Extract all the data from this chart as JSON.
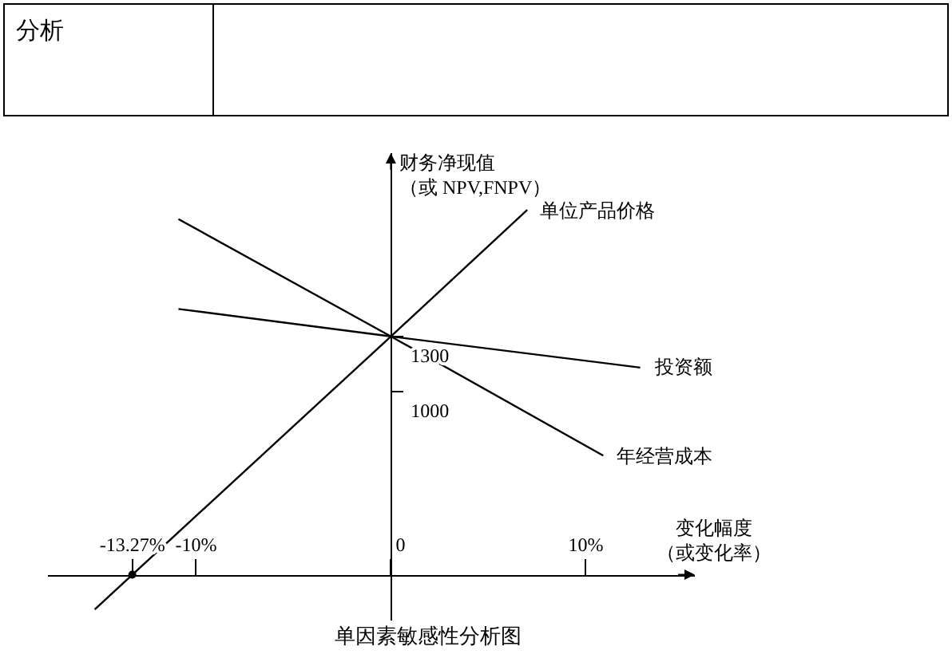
{
  "chart_data": {
    "type": "line",
    "title": "单因素敏感性分析图",
    "xlabel": "变化幅度（或变化率）",
    "ylabel": "财务净现值（或 NPV,FNPV）",
    "series": [
      {
        "name": "单位产品价格",
        "color": "#000000",
        "x": [
          -15.2,
          -13.27,
          0,
          7
        ],
        "values": [
          -190,
          0,
          1300,
          1990
        ]
      },
      {
        "name": "投资额",
        "color": "#000000",
        "x": [
          -10.9,
          0,
          12.8
        ],
        "values": [
          1450,
          1300,
          1130
        ]
      },
      {
        "name": "年经营成本",
        "color": "#000000",
        "x": [
          -10.9,
          0,
          10.9
        ],
        "values": [
          1940,
          1300,
          650
        ]
      },
      {
        "type": "scatter",
        "color": "#000000",
        "x": [
          -13.27
        ],
        "values": [
          0
        ]
      }
    ],
    "xlim": [
      -17.6,
      15.6
    ],
    "ylim": [
      -250,
      2300
    ],
    "xticks": [
      {
        "value": -13.27,
        "label": "-13.27%"
      },
      {
        "value": -10,
        "label": "-10%"
      },
      {
        "value": 0,
        "label": "0"
      },
      {
        "value": 10,
        "label": "10%"
      }
    ],
    "yticks": [
      1000,
      1300
    ],
    "annotations": [
      "分析"
    ]
  }
}
